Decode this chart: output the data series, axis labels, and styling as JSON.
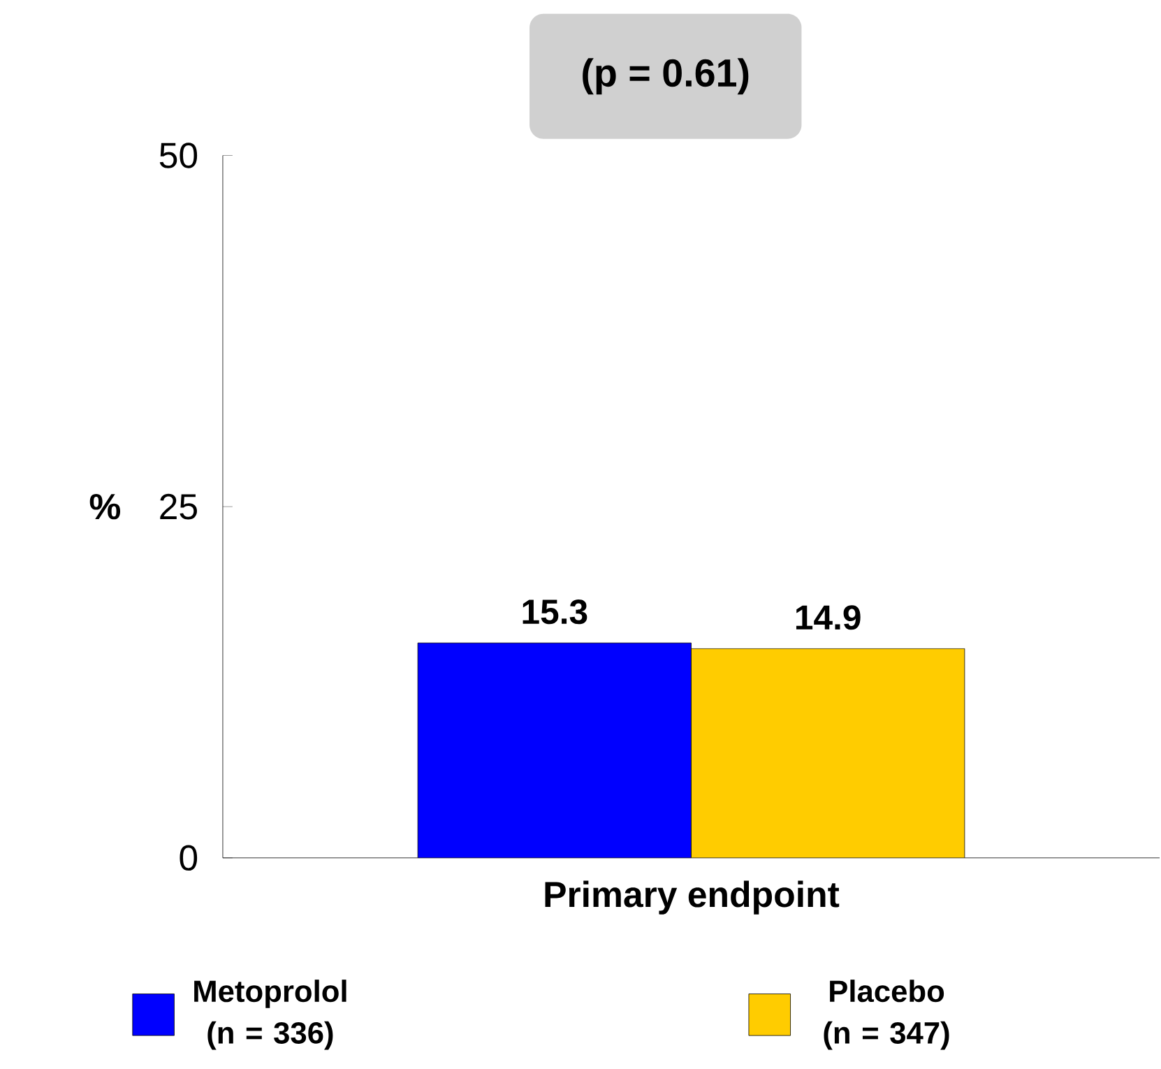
{
  "chart_data": {
    "type": "bar",
    "categories": [
      "Primary endpoint"
    ],
    "series": [
      {
        "name": "Metoprolol (n = 336)",
        "color": "#0000ff",
        "values": [
          15.3
        ]
      },
      {
        "name": "Placebo (n = 347)",
        "color": "#ffcc00",
        "values": [
          14.9
        ]
      }
    ],
    "ylim": [
      0,
      50
    ],
    "yticks": [
      0,
      25,
      50
    ],
    "ylabel": "%",
    "annotations": [
      "(p = 0.61)"
    ],
    "data_labels": true,
    "legend": "bottom"
  }
}
